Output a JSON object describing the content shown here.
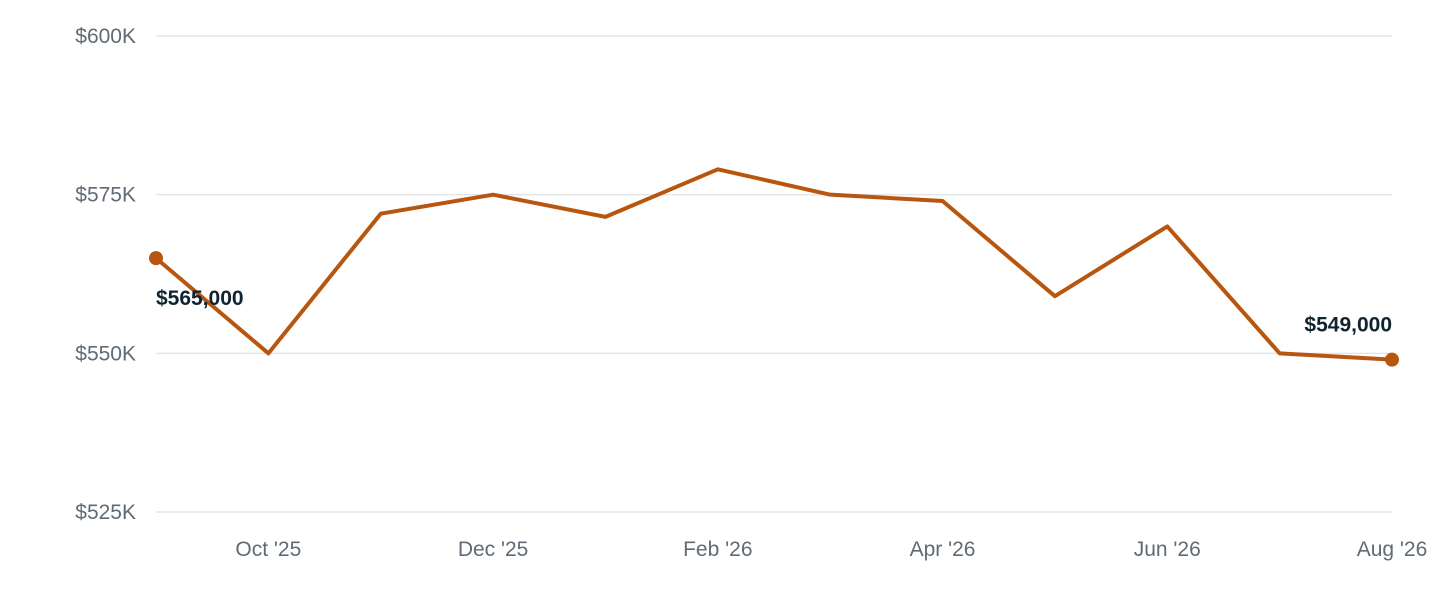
{
  "chart_data": {
    "type": "line",
    "title": "",
    "xlabel": "",
    "ylabel": "",
    "x": [
      "Sep '25",
      "Oct '25",
      "Nov '25",
      "Dec '25",
      "Jan '26",
      "Feb '26",
      "Mar '26",
      "Apr '26",
      "May '26",
      "Jun '26",
      "Jul '26",
      "Aug '26"
    ],
    "x_tick_labels": [
      "Oct '25",
      "Dec '25",
      "Feb '26",
      "Apr '26",
      "Jun '26",
      "Aug '26"
    ],
    "series": [
      {
        "values": [
          565000,
          550000,
          572000,
          575000,
          571500,
          579000,
          575000,
          574000,
          559000,
          570000,
          550000,
          549000
        ],
        "color": "#b8560f"
      }
    ],
    "ylim": [
      525000,
      600000
    ],
    "y_ticks": [
      525000,
      550000,
      575000,
      600000
    ],
    "y_tick_labels": [
      "$525K",
      "$550K",
      "$575K",
      "$600K"
    ],
    "grid": true,
    "legend": "none",
    "annotations": [
      {
        "index": 0,
        "text": "$565,000"
      },
      {
        "index": 11,
        "text": "$549,000"
      }
    ]
  }
}
